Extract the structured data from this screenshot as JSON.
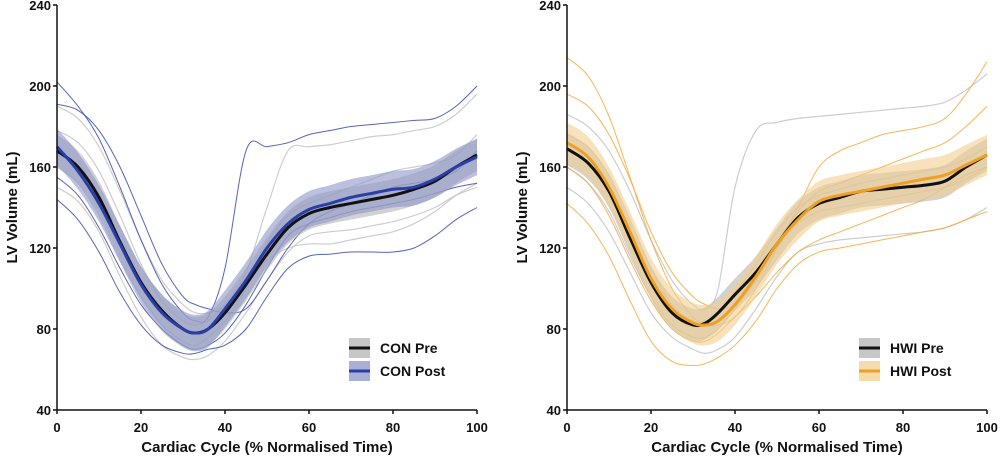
{
  "chart_data": [
    {
      "type": "line",
      "xlabel": "Cardiac Cycle (% Normalised Time)",
      "ylabel": "LV Volume (mL)",
      "xlim": [
        0,
        100
      ],
      "ylim": [
        40,
        240
      ],
      "xticks": [
        "0",
        "20",
        "40",
        "60",
        "80",
        "100"
      ],
      "yticks": [
        "40",
        "80",
        "120",
        "160",
        "200",
        "240"
      ],
      "legend_position": "bottom-right",
      "x": [
        0,
        5,
        10,
        15,
        20,
        25,
        30,
        33,
        36,
        40,
        45,
        50,
        55,
        60,
        65,
        70,
        75,
        80,
        85,
        90,
        95,
        100
      ],
      "series": [
        {
          "name": "CON Pre",
          "color": "#111111",
          "band_color": "#b4b4b4",
          "individual_color": "#c8c8c8",
          "values": [
            168,
            160,
            145,
            123,
            103,
            89,
            80,
            78,
            80,
            88,
            102,
            117,
            130,
            137,
            140,
            142,
            144,
            146,
            149,
            153,
            160,
            166
          ],
          "band_halfwidth": 8,
          "individuals": [
            [
              190,
              184,
              170,
              148,
              124,
              104,
              92,
              88,
              88,
              92,
              108,
              140,
              168,
              170,
              171,
              173,
              175,
              176,
              178,
              180,
              186,
              196
            ],
            [
              150,
              143,
              128,
              106,
              86,
              72,
              66,
              65,
              67,
              74,
              88,
              104,
              118,
              126,
              128,
              129,
              131,
              133,
              136,
              140,
              146,
              150
            ],
            [
              178,
              172,
              158,
              136,
              112,
              94,
              84,
              82,
              84,
              92,
              104,
              114,
              120,
              122,
              122,
              124,
              126,
              128,
              132,
              138,
              146,
              152
            ],
            [
              160,
              152,
              136,
              114,
              96,
              82,
              74,
              72,
              76,
              84,
              100,
              122,
              136,
              142,
              146,
              150,
              154,
              158,
              160,
              162,
              166,
              176
            ]
          ]
        },
        {
          "name": "CON Post",
          "color": "#2a3ea8",
          "band_color": "#8c96c8",
          "individual_color": "#3a4aa8",
          "values": [
            170,
            158,
            142,
            122,
            102,
            88,
            80,
            78,
            80,
            90,
            104,
            120,
            132,
            139,
            142,
            145,
            147,
            149,
            150,
            154,
            160,
            165
          ],
          "band_halfwidth": 9,
          "individuals": [
            [
              202,
              190,
              174,
              150,
              124,
              102,
              88,
              84,
              86,
              110,
              168,
              170,
              172,
              176,
              178,
              180,
              181,
              182,
              183,
              184,
              190,
              200
            ],
            [
              144,
              134,
              118,
              98,
              82,
              72,
              68,
              68,
              70,
              72,
              80,
              96,
              110,
              116,
              117,
              118,
              118,
              118,
              120,
              126,
              134,
              140
            ],
            [
              191,
              188,
              178,
              160,
              136,
              112,
              96,
              92,
              90,
              88,
              90,
              104,
              120,
              132,
              138,
              142,
              146,
              150,
              152,
              154,
              158,
              168
            ],
            [
              155,
              146,
              130,
              110,
              92,
              80,
              72,
              70,
              72,
              78,
              92,
              110,
              126,
              132,
              135,
              138,
              140,
              142,
              144,
              147,
              150,
              152
            ]
          ]
        }
      ]
    },
    {
      "type": "line",
      "xlabel": "Cardiac Cycle (% Normalised Time)",
      "ylabel": "LV Volume (mL)",
      "xlim": [
        0,
        100
      ],
      "ylim": [
        40,
        240
      ],
      "xticks": [
        "0",
        "20",
        "40",
        "60",
        "80",
        "100"
      ],
      "yticks": [
        "40",
        "80",
        "120",
        "160",
        "200",
        "240"
      ],
      "legend_position": "bottom-right",
      "x": [
        0,
        5,
        10,
        15,
        20,
        25,
        30,
        33,
        36,
        40,
        45,
        50,
        55,
        60,
        65,
        70,
        75,
        80,
        85,
        90,
        95,
        100
      ],
      "series": [
        {
          "name": "HWI Pre",
          "color": "#111111",
          "band_color": "#b4b4b4",
          "individual_color": "#c8c8c8",
          "values": [
            169,
            162,
            148,
            125,
            103,
            88,
            82,
            83,
            88,
            97,
            108,
            122,
            135,
            142,
            145,
            148,
            149,
            150,
            151,
            153,
            160,
            166
          ],
          "band_halfwidth": 8,
          "individuals": [
            [
              186,
              180,
              168,
              148,
              124,
              104,
              92,
              90,
              100,
              150,
              178,
              182,
              184,
              185,
              186,
              187,
              188,
              189,
              190,
              192,
              198,
              206
            ],
            [
              150,
              142,
              128,
              108,
              88,
              76,
              70,
              68,
              70,
              76,
              90,
              106,
              118,
              122,
              124,
              125,
              126,
              127,
              128,
              130,
              134,
              140
            ],
            [
              176,
              170,
              156,
              134,
              110,
              92,
              84,
              84,
              88,
              98,
              112,
              128,
              140,
              146,
              149,
              152,
              154,
              156,
              158,
              160,
              164,
              170
            ],
            [
              160,
              152,
              138,
              116,
              96,
              82,
              76,
              76,
              80,
              90,
              104,
              120,
              132,
              138,
              140,
              142,
              144,
              146,
              148,
              150,
              154,
              160
            ]
          ]
        },
        {
          "name": "HWI Post",
          "color": "#f0a020",
          "band_color": "#f3cf8f",
          "individual_color": "#f2a93a",
          "values": [
            172,
            165,
            150,
            128,
            105,
            90,
            83,
            82,
            84,
            92,
            106,
            122,
            134,
            143,
            146,
            148,
            150,
            152,
            154,
            156,
            161,
            166
          ],
          "band_halfwidth": 10,
          "individuals": [
            [
              214,
              205,
              185,
              155,
              124,
              100,
              86,
              82,
              82,
              86,
              100,
              120,
              140,
              160,
              168,
              172,
              176,
              178,
              180,
              184,
              196,
              212
            ],
            [
              142,
              132,
              116,
              94,
              74,
              64,
              62,
              63,
              66,
              72,
              84,
              100,
              112,
              118,
              120,
              122,
              124,
              126,
              128,
              130,
              134,
              138
            ],
            [
              196,
              190,
              176,
              154,
              128,
              108,
              96,
              92,
              90,
              92,
              104,
              122,
              138,
              148,
              152,
              156,
              160,
              164,
              168,
              172,
              180,
              190
            ],
            [
              160,
              152,
              136,
              114,
              94,
              80,
              74,
              74,
              78,
              86,
              96,
              108,
              118,
              124,
              128,
              132,
              136,
              140,
              144,
              150,
              156,
              160
            ]
          ]
        }
      ]
    }
  ]
}
